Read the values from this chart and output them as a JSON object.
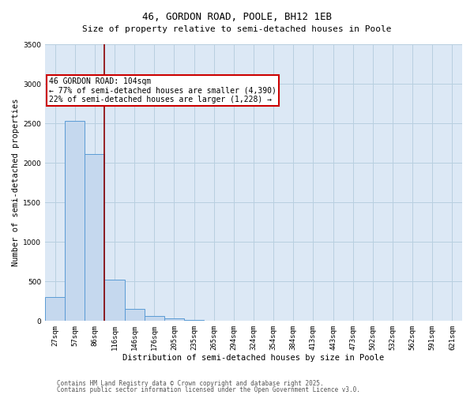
{
  "title": "46, GORDON ROAD, POOLE, BH12 1EB",
  "subtitle": "Size of property relative to semi-detached houses in Poole",
  "xlabel": "Distribution of semi-detached houses by size in Poole",
  "ylabel": "Number of semi-detached properties",
  "categories": [
    "27sqm",
    "57sqm",
    "86sqm",
    "116sqm",
    "146sqm",
    "176sqm",
    "205sqm",
    "235sqm",
    "265sqm",
    "294sqm",
    "324sqm",
    "354sqm",
    "384sqm",
    "413sqm",
    "443sqm",
    "473sqm",
    "502sqm",
    "532sqm",
    "562sqm",
    "591sqm",
    "621sqm"
  ],
  "values": [
    305,
    2530,
    2110,
    520,
    155,
    65,
    30,
    15,
    0,
    0,
    0,
    0,
    0,
    0,
    0,
    0,
    0,
    0,
    0,
    0,
    0
  ],
  "bar_color": "#c5d8ee",
  "bar_edge_color": "#5b9bd5",
  "grid_color": "#b8cfe0",
  "background_color": "#dce8f5",
  "vline_color": "#8b0000",
  "vline_pos": 2.5,
  "annotation_text": "46 GORDON ROAD: 104sqm\n← 77% of semi-detached houses are smaller (4,390)\n22% of semi-detached houses are larger (1,228) →",
  "annotation_box_color": "#cc0000",
  "ylim": [
    0,
    3500
  ],
  "yticks": [
    0,
    500,
    1000,
    1500,
    2000,
    2500,
    3000,
    3500
  ],
  "footer1": "Contains HM Land Registry data © Crown copyright and database right 2025.",
  "footer2": "Contains public sector information licensed under the Open Government Licence v3.0.",
  "title_fontsize": 9,
  "subtitle_fontsize": 8,
  "axis_label_fontsize": 7.5,
  "tick_fontsize": 6.5,
  "annot_fontsize": 7,
  "footer_fontsize": 5.5
}
